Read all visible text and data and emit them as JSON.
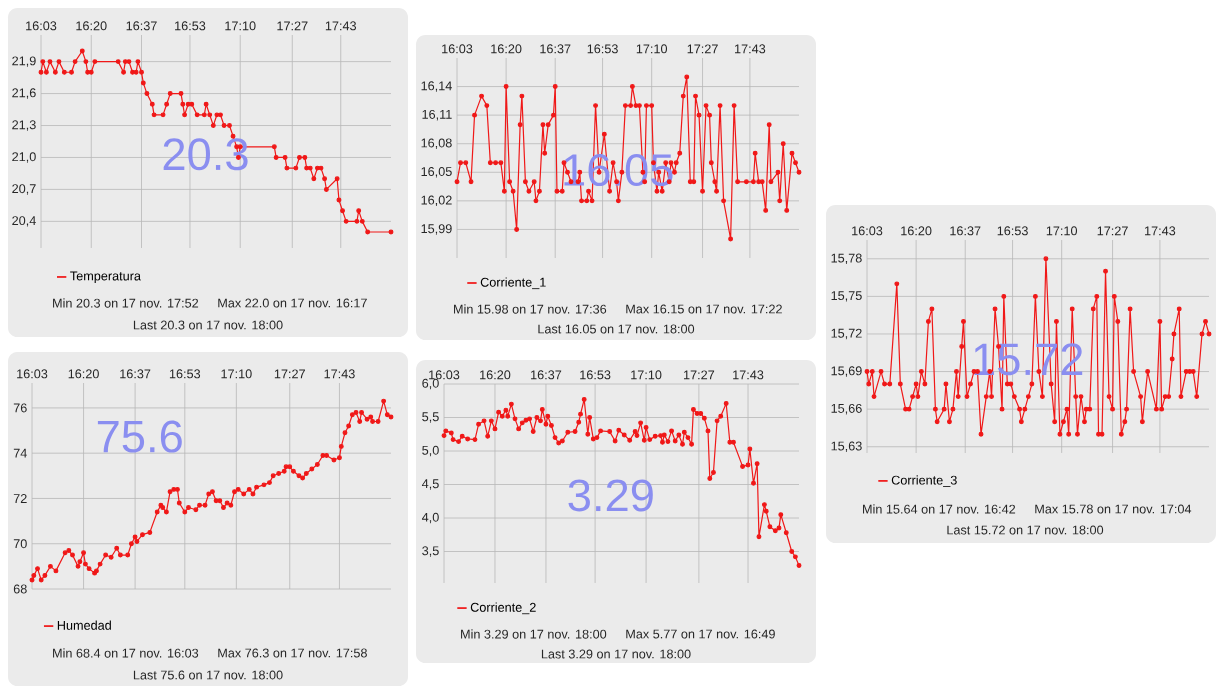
{
  "chart_data": [
    {
      "type": "line",
      "x": [
        16.05,
        16.06,
        16.08,
        16.1,
        16.13,
        16.15,
        16.18,
        16.22,
        16.24,
        16.28,
        16.3,
        16.31,
        16.33,
        16.35,
        16.48,
        16.51,
        16.52,
        16.54,
        16.56,
        16.58,
        16.59,
        16.61,
        16.62,
        16.64,
        16.67,
        16.68,
        16.73,
        16.75,
        16.77,
        16.83,
        16.84,
        16.85,
        16.87,
        16.89,
        16.92,
        16.96,
        16.97,
        16.99,
        17.01,
        17.03,
        17.05,
        17.07,
        17.1,
        17.12,
        17.14,
        17.15,
        17.16,
        17.35,
        17.36,
        17.41,
        17.42,
        17.47,
        17.49,
        17.52,
        17.53,
        17.55,
        17.57,
        17.59,
        17.61,
        17.63,
        17.64,
        17.7,
        17.71,
        17.73,
        17.75,
        17.81,
        17.82,
        17.84,
        17.87,
        18.0
      ],
      "series": [
        {
          "name": "Temperatura",
          "color": "#f01818",
          "values": [
            21.8,
            21.9,
            21.8,
            21.9,
            21.8,
            21.9,
            21.8,
            21.8,
            21.9,
            22.0,
            21.9,
            21.8,
            21.8,
            21.9,
            21.9,
            21.8,
            21.9,
            21.9,
            21.8,
            21.8,
            21.9,
            21.8,
            21.7,
            21.6,
            21.5,
            21.4,
            21.4,
            21.5,
            21.6,
            21.6,
            21.5,
            21.4,
            21.5,
            21.5,
            21.4,
            21.4,
            21.5,
            21.4,
            21.3,
            21.4,
            21.4,
            21.3,
            21.3,
            21.2,
            21.1,
            21.0,
            21.1,
            21.1,
            21.0,
            21.0,
            20.9,
            20.9,
            21.0,
            21.0,
            20.9,
            20.9,
            20.8,
            20.9,
            20.9,
            20.8,
            20.7,
            20.8,
            20.6,
            20.5,
            20.4,
            20.4,
            20.5,
            20.4,
            20.3,
            20.3
          ]
        }
      ],
      "xlim": [
        16.05,
        18.0
      ],
      "xticks": [
        {
          "value": 16.05,
          "label": "16:03"
        },
        {
          "value": 16.33,
          "label": "16:20"
        },
        {
          "value": 16.61,
          "label": "16:37"
        },
        {
          "value": 16.88,
          "label": "16:53"
        },
        {
          "value": 17.16,
          "label": "17:10"
        },
        {
          "value": 17.45,
          "label": "17:27"
        },
        {
          "value": 17.72,
          "label": "17:43"
        }
      ],
      "ylim": [
        20.15,
        22.15
      ],
      "yticks": [
        {
          "value": 20.4,
          "label": "20,4"
        },
        {
          "value": 20.7,
          "label": "20,7"
        },
        {
          "value": 21.0,
          "label": "21,0"
        },
        {
          "value": 21.3,
          "label": "21,3"
        },
        {
          "value": 21.6,
          "label": "21,6"
        },
        {
          "value": 21.9,
          "label": "21,9"
        }
      ],
      "grid": true,
      "legend": "bottom",
      "marker": "circle",
      "annotations": [
        "20.3",
        "Min  20.3 on 17 nov. 17:52",
        "Max  22.0 on 17 nov. 16:17",
        "Last  20.3 on 17 nov. 18:00"
      ]
    },
    {
      "type": "line",
      "x": [
        16.05,
        16.07,
        16.1,
        16.13,
        16.15,
        16.19,
        16.22,
        16.24,
        16.27,
        16.3,
        16.32,
        16.33,
        16.35,
        16.37,
        16.39,
        16.41,
        16.42,
        16.44,
        16.46,
        16.49,
        16.5,
        16.52,
        16.54,
        16.55,
        16.57,
        16.6,
        16.61,
        16.62,
        16.65,
        16.66,
        16.68,
        16.7,
        16.74,
        16.75,
        16.76,
        16.79,
        16.8,
        16.82,
        16.84,
        16.86,
        16.89,
        16.92,
        16.94,
        16.96,
        16.97,
        16.99,
        17.01,
        17.04,
        17.05,
        17.07,
        17.09,
        17.11,
        17.12,
        17.13,
        17.16,
        17.17,
        17.19,
        17.2,
        17.22,
        17.24,
        17.26,
        17.27,
        17.29,
        17.3,
        17.32,
        17.34,
        17.36,
        17.38,
        17.4,
        17.41,
        17.43,
        17.45,
        17.47,
        17.49,
        17.5,
        17.52,
        17.53,
        17.55,
        17.57,
        17.61,
        17.63,
        17.65,
        17.7,
        17.74,
        17.75,
        17.77,
        17.79,
        17.81,
        17.83,
        17.84,
        17.88,
        17.89,
        17.91,
        17.93,
        17.96,
        17.98,
        18.0
      ],
      "series": [
        {
          "name": "Corriente_1",
          "color": "#f01818",
          "values": [
            16.04,
            16.06,
            16.06,
            16.04,
            16.11,
            16.13,
            16.12,
            16.06,
            16.06,
            16.06,
            16.03,
            16.14,
            16.04,
            16.03,
            15.99,
            16.1,
            16.13,
            16.04,
            16.03,
            16.04,
            16.02,
            16.03,
            16.1,
            16.07,
            16.1,
            16.11,
            16.14,
            16.03,
            16.03,
            16.06,
            16.05,
            16.04,
            16.04,
            16.05,
            16.02,
            16.02,
            16.03,
            16.02,
            16.12,
            16.05,
            16.09,
            16.03,
            16.06,
            16.04,
            16.02,
            16.05,
            16.12,
            16.12,
            16.14,
            16.12,
            16.12,
            16.05,
            16.04,
            16.12,
            16.12,
            16.06,
            16.03,
            16.05,
            16.03,
            16.06,
            16.04,
            16.06,
            16.05,
            16.06,
            16.07,
            16.13,
            16.15,
            16.04,
            16.04,
            16.13,
            16.11,
            16.03,
            16.12,
            16.11,
            16.06,
            16.04,
            16.03,
            16.12,
            16.02,
            15.98,
            16.12,
            16.04,
            16.04,
            16.04,
            16.07,
            16.04,
            16.04,
            16.01,
            16.1,
            16.04,
            16.05,
            16.02,
            16.08,
            16.01,
            16.07,
            16.06,
            16.05
          ]
        }
      ],
      "xlim": [
        16.05,
        18.0
      ],
      "xticks": [
        {
          "value": 16.05,
          "label": "16:03"
        },
        {
          "value": 16.33,
          "label": "16:20"
        },
        {
          "value": 16.61,
          "label": "16:37"
        },
        {
          "value": 16.88,
          "label": "16:53"
        },
        {
          "value": 17.16,
          "label": "17:10"
        },
        {
          "value": 17.45,
          "label": "17:27"
        },
        {
          "value": 17.72,
          "label": "17:43"
        }
      ],
      "ylim": [
        15.96,
        16.17
      ],
      "yticks": [
        {
          "value": 15.99,
          "label": "15,99"
        },
        {
          "value": 16.02,
          "label": "16,02"
        },
        {
          "value": 16.05,
          "label": "16,05"
        },
        {
          "value": 16.08,
          "label": "16,08"
        },
        {
          "value": 16.11,
          "label": "16,11"
        },
        {
          "value": 16.14,
          "label": "16,14"
        }
      ],
      "grid": true,
      "legend": "bottom",
      "marker": "circle",
      "annotations": [
        "16.05",
        "Min  15.98 on 17 nov. 17:36",
        "Max  16.15 on 17 nov. 17:22",
        "Last  16.05 on 17 nov. 18:00"
      ]
    },
    {
      "type": "line",
      "x": [
        16.05,
        16.06,
        16.08,
        16.09,
        16.13,
        16.15,
        16.18,
        16.22,
        16.24,
        16.27,
        16.29,
        16.31,
        16.33,
        16.34,
        16.36,
        16.38,
        16.4,
        16.42,
        16.44,
        16.45,
        16.49,
        16.5,
        16.52,
        16.54,
        16.56,
        16.57,
        16.59,
        16.6,
        16.62,
        16.64,
        16.66,
        16.68,
        16.7,
        16.73,
        16.75,
        16.76,
        16.78,
        16.8,
        16.82,
        16.83,
        16.85,
        16.87,
        16.89,
        16.92,
        16.93,
        16.95,
        16.97,
        16.99,
        17.01,
        17.03,
        17.05,
        17.07,
        17.1,
        17.12,
        17.13,
        17.15,
        17.17,
        17.19,
        17.2,
        17.22,
        17.24,
        17.25,
        17.27,
        17.29,
        17.3,
        17.32,
        17.34,
        17.36,
        17.37,
        17.39,
        17.41,
        17.43,
        17.45,
        17.46,
        17.48,
        17.5,
        17.52,
        17.53,
        17.55,
        17.57,
        17.61,
        17.62,
        17.65,
        17.7,
        17.72,
        17.73,
        17.75,
        17.77,
        17.79,
        17.8,
        17.83,
        17.84,
        17.87,
        17.89,
        17.91,
        17.93,
        17.96,
        17.98,
        18.0
      ],
      "series": [
        {
          "name": "Corriente_3",
          "color": "#f01818",
          "values": [
            15.69,
            15.68,
            15.69,
            15.67,
            15.69,
            15.68,
            15.68,
            15.76,
            15.68,
            15.66,
            15.66,
            15.67,
            15.68,
            15.67,
            15.69,
            15.68,
            15.73,
            15.74,
            15.66,
            15.65,
            15.66,
            15.68,
            15.65,
            15.66,
            15.69,
            15.67,
            15.71,
            15.73,
            15.67,
            15.68,
            15.69,
            15.69,
            15.64,
            15.67,
            15.69,
            15.67,
            15.74,
            15.71,
            15.66,
            15.75,
            15.68,
            15.68,
            15.67,
            15.66,
            15.65,
            15.66,
            15.67,
            15.68,
            15.75,
            15.69,
            15.67,
            15.78,
            15.68,
            15.65,
            15.73,
            15.64,
            15.65,
            15.66,
            15.64,
            15.74,
            15.67,
            15.64,
            15.67,
            15.65,
            15.66,
            15.66,
            15.74,
            15.75,
            15.64,
            15.64,
            15.77,
            15.67,
            15.66,
            15.75,
            15.73,
            15.64,
            15.65,
            15.66,
            15.74,
            15.69,
            15.67,
            15.65,
            15.69,
            15.66,
            15.73,
            15.66,
            15.67,
            15.67,
            15.7,
            15.72,
            15.74,
            15.67,
            15.69,
            15.69,
            15.69,
            15.67,
            15.72,
            15.73,
            15.72
          ]
        }
      ],
      "xlim": [
        16.05,
        18.0
      ],
      "xticks": [
        {
          "value": 16.05,
          "label": "16:03"
        },
        {
          "value": 16.33,
          "label": "16:20"
        },
        {
          "value": 16.61,
          "label": "16:37"
        },
        {
          "value": 16.88,
          "label": "16:53"
        },
        {
          "value": 17.16,
          "label": "17:10"
        },
        {
          "value": 17.45,
          "label": "17:27"
        },
        {
          "value": 17.72,
          "label": "17:43"
        }
      ],
      "ylim": [
        15.625,
        15.795
      ],
      "yticks": [
        {
          "value": 15.63,
          "label": "15,63"
        },
        {
          "value": 15.66,
          "label": "15,66"
        },
        {
          "value": 15.69,
          "label": "15,69"
        },
        {
          "value": 15.72,
          "label": "15,72"
        },
        {
          "value": 15.75,
          "label": "15,75"
        },
        {
          "value": 15.78,
          "label": "15,78"
        }
      ],
      "grid": true,
      "legend": "bottom",
      "marker": "circle",
      "annotations": [
        "15.72",
        "Min  15.64 on 17 nov. 16:42",
        "Max  15.78 on 17 nov. 17:04",
        "Last  15.72 on 17 nov. 18:00"
      ]
    },
    {
      "type": "line",
      "x": [
        16.05,
        16.06,
        16.08,
        16.1,
        16.12,
        16.15,
        16.18,
        16.23,
        16.25,
        16.27,
        16.3,
        16.31,
        16.33,
        16.34,
        16.36,
        16.39,
        16.4,
        16.42,
        16.45,
        16.48,
        16.51,
        16.53,
        16.57,
        16.59,
        16.61,
        16.62,
        16.65,
        16.69,
        16.73,
        16.75,
        16.76,
        16.78,
        16.8,
        16.82,
        16.84,
        16.85,
        16.88,
        16.9,
        16.94,
        16.96,
        16.99,
        17.01,
        17.03,
        17.05,
        17.07,
        17.09,
        17.11,
        17.13,
        17.15,
        17.17,
        17.2,
        17.23,
        17.25,
        17.27,
        17.31,
        17.34,
        17.36,
        17.39,
        17.42,
        17.43,
        17.45,
        17.47,
        17.5,
        17.52,
        17.54,
        17.57,
        17.6,
        17.63,
        17.65,
        17.69,
        17.72,
        17.73,
        17.75,
        17.77,
        17.79,
        17.81,
        17.83,
        17.84,
        17.87,
        17.89,
        17.9,
        17.93,
        17.96,
        17.98,
        18.0
      ],
      "series": [
        {
          "name": "Humedad",
          "color": "#f01818",
          "values": [
            68.4,
            68.6,
            68.9,
            68.4,
            68.6,
            69.0,
            68.8,
            69.6,
            69.7,
            69.5,
            69.0,
            69.2,
            69.6,
            69.1,
            68.9,
            68.7,
            68.8,
            69.1,
            69.5,
            69.4,
            69.8,
            69.5,
            69.5,
            70.0,
            70.3,
            70.1,
            70.4,
            70.5,
            71.4,
            71.7,
            71.6,
            71.4,
            72.3,
            72.4,
            72.4,
            71.8,
            71.4,
            71.6,
            71.5,
            71.7,
            71.7,
            72.2,
            72.3,
            71.9,
            71.9,
            71.6,
            71.8,
            71.7,
            72.3,
            72.4,
            72.2,
            72.4,
            72.2,
            72.5,
            72.6,
            72.7,
            73.0,
            73.1,
            73.2,
            73.4,
            73.4,
            73.2,
            73.0,
            72.9,
            73.1,
            73.3,
            73.5,
            73.9,
            73.9,
            73.7,
            73.8,
            74.3,
            74.9,
            75.2,
            75.7,
            75.8,
            75.4,
            75.8,
            75.5,
            75.6,
            75.4,
            75.4,
            76.3,
            75.7,
            75.6
          ]
        }
      ],
      "xlim": [
        16.05,
        18.0
      ],
      "xticks": [
        {
          "value": 16.05,
          "label": "16:03"
        },
        {
          "value": 16.33,
          "label": "16:20"
        },
        {
          "value": 16.61,
          "label": "16:37"
        },
        {
          "value": 16.88,
          "label": "16:53"
        },
        {
          "value": 17.16,
          "label": "17:10"
        },
        {
          "value": 17.45,
          "label": "17:27"
        },
        {
          "value": 17.72,
          "label": "17:43"
        }
      ],
      "ylim": [
        68,
        77.1
      ],
      "yticks": [
        68,
        70,
        72,
        74,
        76
      ],
      "grid": true,
      "legend": "bottom",
      "marker": "circle",
      "annotations": [
        "75.6",
        "Min  68.4 on 17 nov. 16:03",
        "Max  76.3 on 17 nov. 17:58",
        "Last  75.6 on 17 nov. 18:00"
      ]
    },
    {
      "type": "line",
      "x": [
        16.05,
        16.06,
        16.09,
        16.1,
        16.13,
        16.15,
        16.18,
        16.22,
        16.24,
        16.27,
        16.29,
        16.31,
        16.33,
        16.35,
        16.37,
        16.39,
        16.4,
        16.42,
        16.44,
        16.46,
        16.48,
        16.5,
        16.52,
        16.54,
        16.56,
        16.58,
        16.59,
        16.61,
        16.62,
        16.64,
        16.66,
        16.68,
        16.7,
        16.73,
        16.77,
        16.79,
        16.8,
        16.82,
        16.84,
        16.85,
        16.87,
        16.89,
        16.91,
        16.96,
        16.99,
        17.01,
        17.04,
        17.07,
        17.1,
        17.11,
        17.13,
        17.15,
        17.16,
        17.18,
        17.21,
        17.24,
        17.25,
        17.26,
        17.28,
        17.3,
        17.32,
        17.34,
        17.36,
        17.37,
        17.39,
        17.41,
        17.42,
        17.44,
        17.46,
        17.48,
        17.5,
        17.51,
        17.53,
        17.55,
        17.57,
        17.6,
        17.62,
        17.64,
        17.69,
        17.72,
        17.73,
        17.75,
        17.77,
        17.78,
        17.81,
        17.82,
        17.84,
        17.87,
        17.89,
        17.9,
        17.93,
        17.96,
        17.98,
        18.0
      ],
      "series": [
        {
          "name": "Corriente_2",
          "color": "#f01818",
          "values": [
            5.23,
            5.3,
            5.27,
            5.17,
            5.14,
            5.22,
            5.18,
            5.17,
            5.4,
            5.45,
            5.22,
            5.45,
            5.33,
            5.58,
            5.52,
            5.61,
            5.52,
            5.7,
            5.48,
            5.33,
            5.42,
            5.46,
            5.48,
            5.29,
            5.5,
            5.45,
            5.62,
            5.4,
            5.52,
            5.38,
            5.2,
            5.12,
            5.15,
            5.28,
            5.29,
            5.43,
            5.55,
            5.77,
            5.25,
            5.5,
            5.18,
            5.2,
            5.3,
            5.29,
            5.15,
            5.31,
            5.24,
            5.16,
            5.29,
            5.23,
            5.42,
            5.16,
            5.35,
            5.17,
            5.22,
            5.23,
            5.13,
            5.24,
            5.14,
            5.3,
            5.15,
            5.24,
            5.1,
            5.28,
            5.2,
            5.1,
            5.62,
            5.56,
            5.56,
            5.49,
            5.3,
            4.59,
            4.68,
            5.45,
            5.52,
            5.71,
            5.13,
            5.13,
            4.77,
            4.79,
            5.03,
            4.52,
            4.81,
            3.72,
            4.2,
            4.1,
            3.87,
            3.81,
            3.85,
            4.05,
            3.78,
            3.5,
            3.42,
            3.29
          ]
        }
      ],
      "xlim": [
        16.05,
        18.0
      ],
      "xticks": [
        {
          "value": 16.05,
          "label": "16:03"
        },
        {
          "value": 16.33,
          "label": "16:20"
        },
        {
          "value": 16.61,
          "label": "16:37"
        },
        {
          "value": 16.88,
          "label": "16:53"
        },
        {
          "value": 17.16,
          "label": "17:10"
        },
        {
          "value": 17.45,
          "label": "17:27"
        },
        {
          "value": 17.72,
          "label": "17:43"
        }
      ],
      "ylim": [
        3.03,
        6.0
      ],
      "yticks": [
        {
          "value": 3.5,
          "label": "3,5"
        },
        {
          "value": 4.0,
          "label": "4,0"
        },
        {
          "value": 4.5,
          "label": "4,5"
        },
        {
          "value": 5.0,
          "label": "5,0"
        },
        {
          "value": 5.5,
          "label": "5,5"
        },
        {
          "value": 6.0,
          "label": "6,0"
        }
      ],
      "grid": true,
      "legend": "bottom",
      "marker": "circle",
      "annotations": [
        "3.29",
        "Min  3.29 on 17 nov. 18:00",
        "Max  5.77 on 17 nov. 16:49",
        "Last  3.29 on 17 nov. 18:00"
      ]
    }
  ]
}
